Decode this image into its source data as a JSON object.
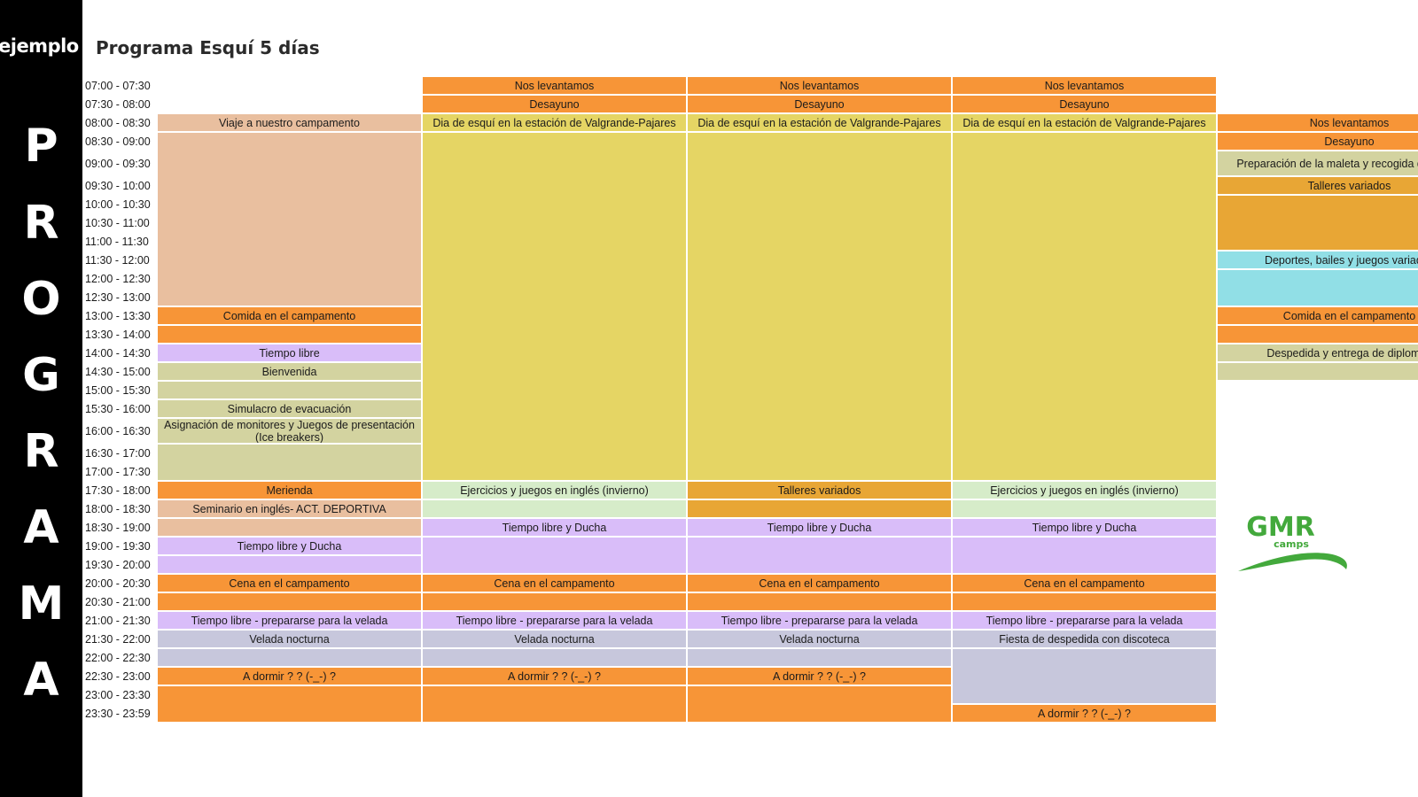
{
  "sidebar": {
    "tag": "ejemplo",
    "letters": [
      "P",
      "R",
      "O",
      "G",
      "R",
      "A",
      "M",
      "A"
    ]
  },
  "title": "Programa Esquí 5 días",
  "colors": {
    "orange": "#f79537",
    "peach": "#e9bf9f",
    "yellow": "#e5d564",
    "lavender": "#d9bdf9",
    "olive": "#d3d3a0",
    "lightgreen": "#d6ecc9",
    "amber": "#e8a635",
    "cyan": "#91dfe6",
    "slate": "#c7c7dc",
    "logo_green": "#43a93c"
  },
  "times": [
    "07:00 - 07:30",
    "07:30 - 08:00",
    "08:00 - 08:30",
    "08:30 - 09:00",
    "09:00 - 09:30",
    "09:30 - 10:00",
    "10:00 - 10:30",
    "10:30 - 11:00",
    "11:00 - 11:30",
    "11:30 - 12:00",
    "12:00 - 12:30",
    "12:30 - 13:00",
    "13:00 - 13:30",
    "13:30 - 14:00",
    "14:00 - 14:30",
    "14:30 - 15:00",
    "15:00 - 15:30",
    "15:30 - 16:00",
    "16:00 - 16:30",
    "16:30 - 17:00",
    "17:00 - 17:30",
    "17:30 - 18:00",
    "18:00 - 18:30",
    "18:30 - 19:00",
    "19:00 - 19:30",
    "19:30 - 20:00",
    "20:00 - 20:30",
    "20:30 - 21:00",
    "21:00 - 21:30",
    "21:30 - 22:00",
    "22:00 - 22:30",
    "22:30 - 23:00",
    "23:00 - 23:30",
    "23:30 - 23:59"
  ],
  "days": [
    [
      {
        "r": 2,
        "span": 1,
        "c": "peach",
        "t": "Viaje a nuestro campamento"
      },
      {
        "r": 3,
        "span": 9,
        "c": "peach",
        "t": ""
      },
      {
        "r": 12,
        "span": 1,
        "c": "orange",
        "t": "Comida en el campamento"
      },
      {
        "r": 13,
        "span": 1,
        "c": "orange",
        "t": ""
      },
      {
        "r": 14,
        "span": 1,
        "c": "lavender",
        "t": "Tiempo libre"
      },
      {
        "r": 15,
        "span": 1,
        "c": "olive",
        "t": "Bienvenida"
      },
      {
        "r": 16,
        "span": 1,
        "c": "olive",
        "t": ""
      },
      {
        "r": 17,
        "span": 1,
        "c": "olive",
        "t": "Simulacro de evacuación"
      },
      {
        "r": 18,
        "span": 1,
        "c": "olive",
        "t": "Asignación de monitores y Juegos de presentación (Ice breakers)"
      },
      {
        "r": 19,
        "span": 2,
        "c": "olive",
        "t": ""
      },
      {
        "r": 21,
        "span": 1,
        "c": "orange",
        "t": "Merienda"
      },
      {
        "r": 22,
        "span": 1,
        "c": "peach",
        "t": "Seminario en inglés- ACT. DEPORTIVA"
      },
      {
        "r": 23,
        "span": 1,
        "c": "peach",
        "t": ""
      },
      {
        "r": 24,
        "span": 1,
        "c": "lavender",
        "t": "Tiempo libre y Ducha"
      },
      {
        "r": 25,
        "span": 1,
        "c": "lavender",
        "t": ""
      },
      {
        "r": 26,
        "span": 1,
        "c": "orange",
        "t": "Cena en el campamento"
      },
      {
        "r": 27,
        "span": 1,
        "c": "orange",
        "t": ""
      },
      {
        "r": 28,
        "span": 1,
        "c": "lavender",
        "t": "Tiempo libre - prepararse para la velada"
      },
      {
        "r": 29,
        "span": 1,
        "c": "slate",
        "t": "Velada nocturna"
      },
      {
        "r": 30,
        "span": 1,
        "c": "slate",
        "t": ""
      },
      {
        "r": 31,
        "span": 1,
        "c": "orange",
        "t": "A dormir ? ? (-_-) ?"
      },
      {
        "r": 32,
        "span": 2,
        "c": "orange",
        "t": ""
      }
    ],
    [
      {
        "r": 0,
        "span": 1,
        "c": "orange",
        "t": "Nos levantamos"
      },
      {
        "r": 1,
        "span": 1,
        "c": "orange",
        "t": "Desayuno"
      },
      {
        "r": 2,
        "span": 1,
        "c": "yellow",
        "t": "Dia de esquí en la estación de Valgrande-Pajares"
      },
      {
        "r": 3,
        "span": 18,
        "c": "yellow",
        "t": ""
      },
      {
        "r": 21,
        "span": 1,
        "c": "lightgreen",
        "t": "Ejercicios y juegos en inglés (invierno)"
      },
      {
        "r": 22,
        "span": 1,
        "c": "lightgreen",
        "t": ""
      },
      {
        "r": 23,
        "span": 1,
        "c": "lavender",
        "t": "Tiempo libre y Ducha"
      },
      {
        "r": 24,
        "span": 2,
        "c": "lavender",
        "t": ""
      },
      {
        "r": 26,
        "span": 1,
        "c": "orange",
        "t": "Cena en el campamento"
      },
      {
        "r": 27,
        "span": 1,
        "c": "orange",
        "t": ""
      },
      {
        "r": 28,
        "span": 1,
        "c": "lavender",
        "t": "Tiempo libre - prepararse para la velada"
      },
      {
        "r": 29,
        "span": 1,
        "c": "slate",
        "t": "Velada nocturna"
      },
      {
        "r": 30,
        "span": 1,
        "c": "slate",
        "t": ""
      },
      {
        "r": 31,
        "span": 1,
        "c": "orange",
        "t": "A dormir ? ? (-_-) ?"
      },
      {
        "r": 32,
        "span": 2,
        "c": "orange",
        "t": ""
      }
    ],
    [
      {
        "r": 0,
        "span": 1,
        "c": "orange",
        "t": "Nos levantamos"
      },
      {
        "r": 1,
        "span": 1,
        "c": "orange",
        "t": "Desayuno"
      },
      {
        "r": 2,
        "span": 1,
        "c": "yellow",
        "t": "Dia de esquí en la estación de Valgrande-Pajares"
      },
      {
        "r": 3,
        "span": 18,
        "c": "yellow",
        "t": ""
      },
      {
        "r": 21,
        "span": 1,
        "c": "amber",
        "t": "Talleres variados"
      },
      {
        "r": 22,
        "span": 1,
        "c": "amber",
        "t": ""
      },
      {
        "r": 23,
        "span": 1,
        "c": "lavender",
        "t": "Tiempo libre y Ducha"
      },
      {
        "r": 24,
        "span": 2,
        "c": "lavender",
        "t": ""
      },
      {
        "r": 26,
        "span": 1,
        "c": "orange",
        "t": "Cena en el campamento"
      },
      {
        "r": 27,
        "span": 1,
        "c": "orange",
        "t": ""
      },
      {
        "r": 28,
        "span": 1,
        "c": "lavender",
        "t": "Tiempo libre - prepararse para la velada"
      },
      {
        "r": 29,
        "span": 1,
        "c": "slate",
        "t": "Velada nocturna"
      },
      {
        "r": 30,
        "span": 1,
        "c": "slate",
        "t": ""
      },
      {
        "r": 31,
        "span": 1,
        "c": "orange",
        "t": "A dormir ? ? (-_-) ?"
      },
      {
        "r": 32,
        "span": 2,
        "c": "orange",
        "t": ""
      }
    ],
    [
      {
        "r": 0,
        "span": 1,
        "c": "orange",
        "t": "Nos levantamos"
      },
      {
        "r": 1,
        "span": 1,
        "c": "orange",
        "t": "Desayuno"
      },
      {
        "r": 2,
        "span": 1,
        "c": "yellow",
        "t": "Dia de esquí en la estación de Valgrande-Pajares"
      },
      {
        "r": 3,
        "span": 18,
        "c": "yellow",
        "t": ""
      },
      {
        "r": 21,
        "span": 1,
        "c": "lightgreen",
        "t": "Ejercicios y juegos en inglés (invierno)"
      },
      {
        "r": 22,
        "span": 1,
        "c": "lightgreen",
        "t": ""
      },
      {
        "r": 23,
        "span": 1,
        "c": "lavender",
        "t": "Tiempo libre y Ducha"
      },
      {
        "r": 24,
        "span": 2,
        "c": "lavender",
        "t": ""
      },
      {
        "r": 26,
        "span": 1,
        "c": "orange",
        "t": "Cena en el campamento"
      },
      {
        "r": 27,
        "span": 1,
        "c": "orange",
        "t": ""
      },
      {
        "r": 28,
        "span": 1,
        "c": "lavender",
        "t": "Tiempo libre - prepararse para la velada"
      },
      {
        "r": 29,
        "span": 1,
        "c": "slate",
        "t": "Fiesta de despedida con discoteca"
      },
      {
        "r": 30,
        "span": 3,
        "c": "slate",
        "t": ""
      },
      {
        "r": 33,
        "span": 1,
        "c": "orange",
        "t": "A dormir ? ? (-_-) ?"
      }
    ],
    [
      {
        "r": 2,
        "span": 1,
        "c": "orange",
        "t": "Nos levantamos"
      },
      {
        "r": 3,
        "span": 1,
        "c": "orange",
        "t": "Desayuno"
      },
      {
        "r": 4,
        "span": 1,
        "c": "olive",
        "t": "Preparación de la maleta y recogida del camp"
      },
      {
        "r": 5,
        "span": 1,
        "c": "amber",
        "t": "Talleres variados"
      },
      {
        "r": 6,
        "span": 3,
        "c": "amber",
        "t": ""
      },
      {
        "r": 9,
        "span": 1,
        "c": "cyan",
        "t": "Deportes, bailes y juegos variados"
      },
      {
        "r": 10,
        "span": 2,
        "c": "cyan",
        "t": ""
      },
      {
        "r": 12,
        "span": 1,
        "c": "orange",
        "t": "Comida en el campamento"
      },
      {
        "r": 13,
        "span": 1,
        "c": "orange",
        "t": ""
      },
      {
        "r": 14,
        "span": 1,
        "c": "olive",
        "t": "Despedida y entrega de diplomas"
      },
      {
        "r": 15,
        "span": 1,
        "c": "olive",
        "t": ""
      }
    ]
  ],
  "logo": {
    "name": "GMR",
    "sub": "camps"
  }
}
